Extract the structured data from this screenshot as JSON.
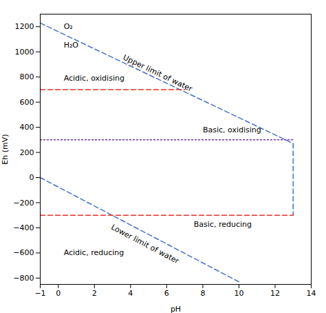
{
  "chart_data": {
    "type": "line",
    "xlabel": "pH",
    "ylabel": "Eh (mV)",
    "xlim": [
      -1,
      14
    ],
    "ylim": [
      -850,
      1300
    ],
    "xticks": [
      -1,
      0,
      2,
      4,
      6,
      8,
      10,
      12,
      14
    ],
    "yticks": [
      -800,
      -600,
      -400,
      -200,
      0,
      200,
      400,
      600,
      800,
      1000,
      1200
    ],
    "series": [
      {
        "x": [
          -1,
          13
        ],
        "values": [
          1229,
          271
        ],
        "color": "#4472C4",
        "line_style": "dashed"
      },
      {
        "x": [
          -1,
          10
        ],
        "values": [
          0,
          -830
        ],
        "color": "#4472C4",
        "line_style": "dashed"
      },
      {
        "x": [
          13,
          13
        ],
        "values": [
          271,
          -300
        ],
        "color": "#4472C4",
        "line_style": "dashed"
      },
      {
        "x": [
          -1,
          7
        ],
        "values": [
          700,
          700
        ],
        "color": "#E8302A",
        "line_style": "dashed"
      },
      {
        "x": [
          -1,
          13
        ],
        "values": [
          -300,
          -300
        ],
        "color": "#E8302A",
        "line_style": "dashed"
      },
      {
        "x": [
          -1,
          13
        ],
        "values": [
          300,
          300
        ],
        "color": "#7030A0",
        "line_style": "dotted"
      }
    ],
    "annotations": [
      {
        "text": "O₂",
        "x": 0.3,
        "y": 1200
      },
      {
        "text": "H₂O",
        "x": 0.3,
        "y": 1055
      },
      {
        "text": "Upper limit of water",
        "x": 5.5,
        "y": 830
      },
      {
        "text": "Lower limit of water",
        "x": 4.8,
        "y": -530
      },
      {
        "text": "Acidic, oxidising",
        "x": 0.3,
        "y": 790
      },
      {
        "text": "Basic, oxidising",
        "x": 8.0,
        "y": 380
      },
      {
        "text": "Acidic, reducing",
        "x": 0.3,
        "y": -600
      },
      {
        "text": "Basic, reducing",
        "x": 7.5,
        "y": -370
      }
    ]
  }
}
